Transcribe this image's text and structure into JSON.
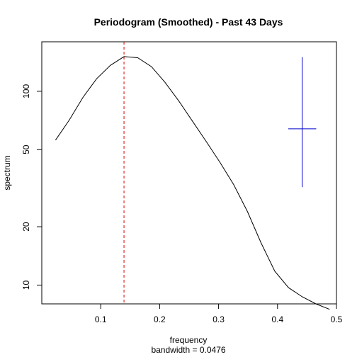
{
  "chart_data": {
    "type": "line",
    "title": "Periodogram (Smoothed) - Past 43 Days",
    "xlabel": "frequency",
    "xlabel_sub": "bandwidth = 0.0476",
    "ylabel": "spectrum",
    "y_scale": "log",
    "xlim": [
      0.0,
      0.5
    ],
    "ylim": [
      8.0,
      180.0
    ],
    "x_ticks": [
      0.1,
      0.2,
      0.3,
      0.4,
      0.5
    ],
    "x_tick_labels": [
      "0.1",
      "0.2",
      "0.3",
      "0.4",
      "0.5"
    ],
    "y_ticks": [
      10,
      20,
      50,
      100
    ],
    "y_tick_labels": [
      "10",
      "20",
      "50",
      "100"
    ],
    "series": [
      {
        "color": "#000000",
        "x": [
          0.0233,
          0.0465,
          0.0698,
          0.093,
          0.1163,
          0.1395,
          0.1628,
          0.186,
          0.2093,
          0.2326,
          0.2558,
          0.2791,
          0.3023,
          0.3256,
          0.3488,
          0.3721,
          0.3953,
          0.4186,
          0.4419,
          0.4651,
          0.4884
        ],
        "y": [
          56,
          71,
          93,
          116,
          136,
          151,
          149,
          134,
          111,
          89,
          70,
          55,
          43,
          33,
          24,
          16.5,
          11.8,
          9.7,
          8.7,
          8.0,
          7.5
        ]
      }
    ],
    "annotations": {
      "vline": {
        "x": 0.1395,
        "color": "#dd0000",
        "style": "dashed"
      },
      "bandwidth_cross": {
        "x": 0.4419,
        "y_center": 64,
        "y_low": 32,
        "y_high": 150,
        "half_width": 0.0238,
        "color": "#0000cc"
      }
    }
  }
}
